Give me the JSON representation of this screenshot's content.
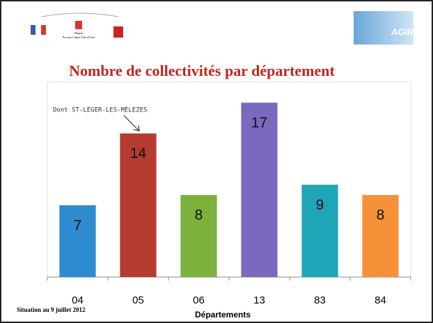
{
  "header": {
    "region_line1": "Région",
    "region_line2": "Provence-Alpes-Côte d'Azur",
    "logo_right": "AGIR"
  },
  "chart_data": {
    "type": "bar",
    "title": "Nombre de collectivités par département",
    "categories": [
      "04",
      "05",
      "06",
      "13",
      "83",
      "84"
    ],
    "values": [
      7,
      14,
      8,
      17,
      9,
      8
    ],
    "colors": [
      "#2e8bd0",
      "#b63b30",
      "#7cb23c",
      "#7a69bf",
      "#1fa5b8",
      "#f6913a"
    ],
    "xlabel": "Départements",
    "ylim": [
      0,
      19
    ],
    "annotation": "Dont ST-LÉGER-LES-MÉLÈZES"
  },
  "footer": {
    "note": "Situation au 9 juillet 2012"
  }
}
